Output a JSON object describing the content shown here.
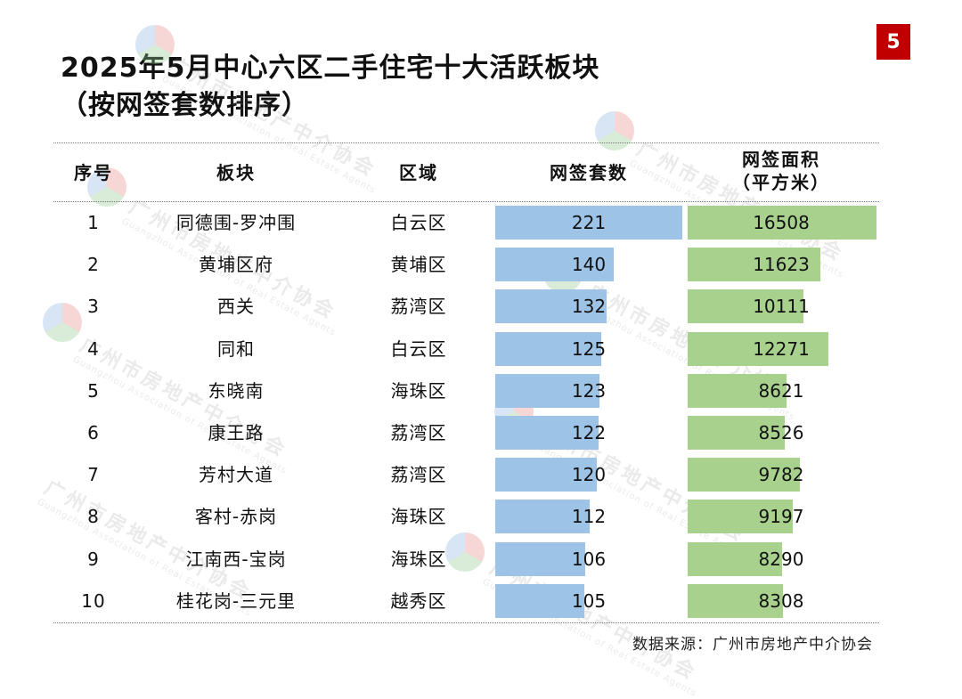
{
  "page_number": "5",
  "title_line1": "2025年5月中心六区二手住宅十大活跃板块",
  "title_line2": "（按网签套数排序）",
  "watermark": {
    "cn": "广州市房地产中介协会",
    "en": "Guangzhou Association of Real Estate Agents"
  },
  "source": "数据来源：广州市房地产中介协会",
  "colors": {
    "count_bar": "#9dc3e6",
    "area_bar": "#a9d18e",
    "badge": "#c00000"
  },
  "chart_data": {
    "type": "table",
    "title": "2025年5月中心六区二手住宅十大活跃板块（按网签套数排序）",
    "headers": {
      "rank": "序号",
      "block": "板块",
      "district": "区域",
      "count": "网签套数",
      "area_line1": "网签面积",
      "area_line2": "（平方米）"
    },
    "rows": [
      {
        "rank": "1",
        "block": "同德围-罗冲围",
        "district": "白云区",
        "count": 221,
        "area": 16508
      },
      {
        "rank": "2",
        "block": "黄埔区府",
        "district": "黄埔区",
        "count": 140,
        "area": 11623
      },
      {
        "rank": "3",
        "block": "西关",
        "district": "荔湾区",
        "count": 132,
        "area": 10111
      },
      {
        "rank": "4",
        "block": "同和",
        "district": "白云区",
        "count": 125,
        "area": 12271
      },
      {
        "rank": "5",
        "block": "东晓南",
        "district": "海珠区",
        "count": 123,
        "area": 8621
      },
      {
        "rank": "6",
        "block": "康王路",
        "district": "荔湾区",
        "count": 122,
        "area": 8526
      },
      {
        "rank": "7",
        "block": "芳村大道",
        "district": "荔湾区",
        "count": 120,
        "area": 9782
      },
      {
        "rank": "8",
        "block": "客村-赤岗",
        "district": "海珠区",
        "count": 112,
        "area": 9197
      },
      {
        "rank": "9",
        "block": "江南西-宝岗",
        "district": "海珠区",
        "count": 106,
        "area": 8290
      },
      {
        "rank": "10",
        "block": "桂花岗-三元里",
        "district": "越秀区",
        "count": 105,
        "area": 8308
      }
    ]
  }
}
